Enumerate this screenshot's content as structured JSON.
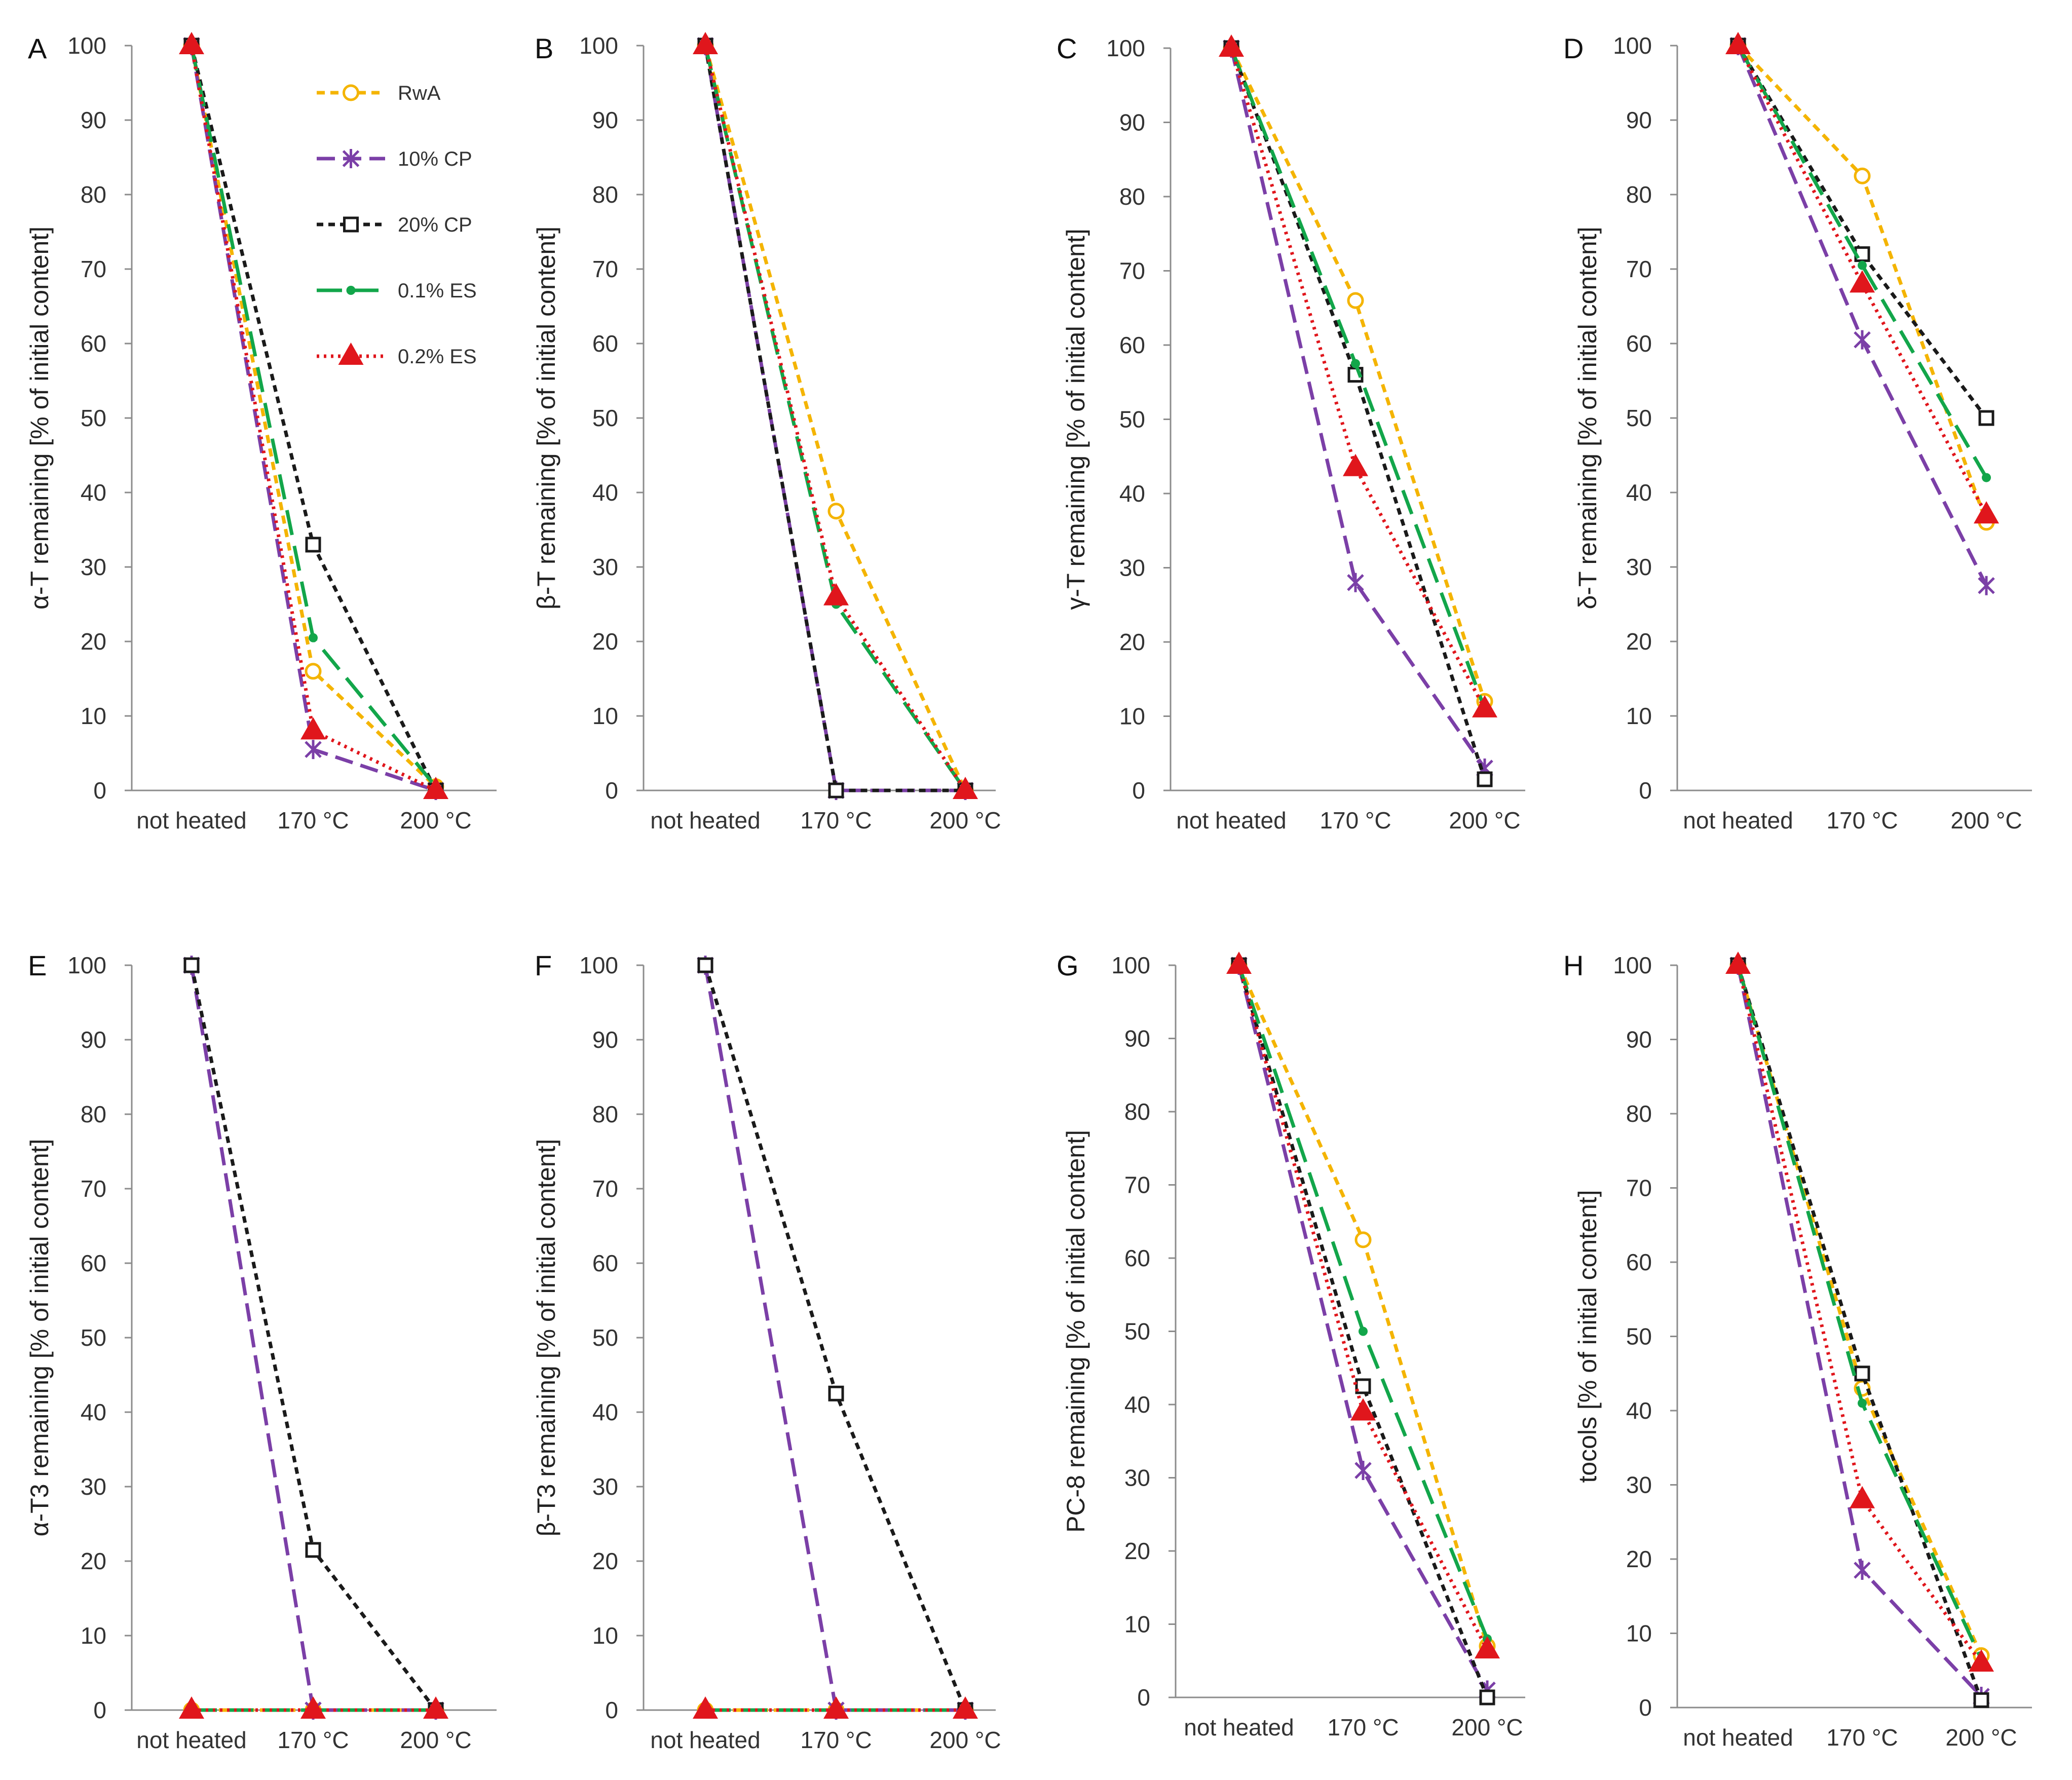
{
  "figure": {
    "categories": [
      "not heated",
      "170 °C",
      "200 °C"
    ],
    "yticks": [
      0,
      10,
      20,
      30,
      40,
      50,
      60,
      70,
      80,
      90,
      100
    ]
  },
  "series_styles": {
    "RwA": {
      "color": "#f4b400",
      "dash": "16,11",
      "marker": "circle-open"
    },
    "10% CP": {
      "color": "#7b3fa7",
      "dash": "36,16",
      "marker": "asterisk"
    },
    "20% CP": {
      "color": "#1a1a1a",
      "dash": "13,10",
      "marker": "square-open"
    },
    "0.1% ES": {
      "color": "#12a64a",
      "dash": "50,22",
      "marker": "dot"
    },
    "0.2% ES": {
      "color": "#e0161c",
      "dash": "5,9",
      "marker": "triangle-filled"
    }
  },
  "legend": {
    "items": [
      "RwA",
      "10% CP",
      "20% CP",
      "0.1% ES",
      "0.2% ES"
    ]
  },
  "chart_data": [
    {
      "panel": "A",
      "type": "line",
      "ylabel": "α-T remaining [% of initial content]",
      "ylim": [
        0,
        100
      ],
      "categories": [
        "not heated",
        "170 °C",
        "200 °C"
      ],
      "series": [
        {
          "name": "RwA",
          "values": [
            100,
            16,
            0.5
          ]
        },
        {
          "name": "10% CP",
          "values": [
            100,
            5.5,
            0
          ]
        },
        {
          "name": "20% CP",
          "values": [
            100,
            33,
            0
          ]
        },
        {
          "name": "0.1% ES",
          "values": [
            100,
            20.5,
            0.5
          ]
        },
        {
          "name": "0.2% ES",
          "values": [
            100,
            8,
            0
          ]
        }
      ]
    },
    {
      "panel": "B",
      "type": "line",
      "ylabel": "β-T remaining [% of initial content]",
      "ylim": [
        0,
        100
      ],
      "categories": [
        "not heated",
        "170 °C",
        "200 °C"
      ],
      "series": [
        {
          "name": "RwA",
          "values": [
            100,
            37.5,
            0
          ]
        },
        {
          "name": "10% CP",
          "values": [
            100,
            0,
            0
          ]
        },
        {
          "name": "20% CP",
          "values": [
            100,
            0,
            0
          ]
        },
        {
          "name": "0.1% ES",
          "values": [
            100,
            25,
            0
          ]
        },
        {
          "name": "0.2% ES",
          "values": [
            100,
            26,
            0
          ]
        }
      ]
    },
    {
      "panel": "C",
      "type": "line",
      "ylabel": "γ-T remaining [% of initial content]",
      "ylim": [
        0,
        100
      ],
      "categories": [
        "not heated",
        "170 °C",
        "200 °C"
      ],
      "series": [
        {
          "name": "RwA",
          "values": [
            100,
            66,
            12
          ]
        },
        {
          "name": "10% CP",
          "values": [
            100,
            28,
            3
          ]
        },
        {
          "name": "20% CP",
          "values": [
            100,
            56,
            1.5
          ]
        },
        {
          "name": "0.1% ES",
          "values": [
            100,
            57.5,
            11
          ]
        },
        {
          "name": "0.2% ES",
          "values": [
            100,
            43.5,
            11
          ]
        }
      ]
    },
    {
      "panel": "D",
      "type": "line",
      "ylabel": "δ-T remaining [% of initial content]",
      "ylim": [
        0,
        100
      ],
      "categories": [
        "not heated",
        "170 °C",
        "200 °C"
      ],
      "series": [
        {
          "name": "RwA",
          "values": [
            100,
            82.5,
            36
          ]
        },
        {
          "name": "10% CP",
          "values": [
            100,
            60.5,
            27.5
          ]
        },
        {
          "name": "20% CP",
          "values": [
            100,
            72,
            50
          ]
        },
        {
          "name": "0.1% ES",
          "values": [
            100,
            70.5,
            42
          ]
        },
        {
          "name": "0.2% ES",
          "values": [
            100,
            68,
            37
          ]
        }
      ]
    },
    {
      "panel": "E",
      "type": "line",
      "ylabel": "α-T3 remaining [% of initial content]",
      "ylim": [
        0,
        100
      ],
      "categories": [
        "not heated",
        "170 °C",
        "200 °C"
      ],
      "series": [
        {
          "name": "RwA",
          "values": [
            0,
            0,
            0
          ]
        },
        {
          "name": "10% CP",
          "values": [
            100,
            0,
            0
          ]
        },
        {
          "name": "20% CP",
          "values": [
            100,
            21.5,
            0
          ]
        },
        {
          "name": "0.1% ES",
          "values": [
            0,
            0,
            0
          ]
        },
        {
          "name": "0.2% ES",
          "values": [
            0,
            0,
            0
          ]
        }
      ]
    },
    {
      "panel": "F",
      "type": "line",
      "ylabel": "β-T3 remaining [% of initial content]",
      "ylim": [
        0,
        100
      ],
      "categories": [
        "not heated",
        "170 °C",
        "200 °C"
      ],
      "series": [
        {
          "name": "RwA",
          "values": [
            0,
            0,
            0
          ]
        },
        {
          "name": "10% CP",
          "values": [
            100,
            0,
            0
          ]
        },
        {
          "name": "20% CP",
          "values": [
            100,
            42.5,
            0
          ]
        },
        {
          "name": "0.1% ES",
          "values": [
            0,
            0,
            0
          ]
        },
        {
          "name": "0.2% ES",
          "values": [
            0,
            0,
            0
          ]
        }
      ]
    },
    {
      "panel": "G",
      "type": "line",
      "ylabel": "PC-8 remaining [% of initial content]",
      "ylim": [
        0,
        100
      ],
      "categories": [
        "not heated",
        "170 °C",
        "200 °C"
      ],
      "series": [
        {
          "name": "RwA",
          "values": [
            100,
            62.5,
            7
          ]
        },
        {
          "name": "10% CP",
          "values": [
            100,
            31,
            1
          ]
        },
        {
          "name": "20% CP",
          "values": [
            100,
            42.5,
            0
          ]
        },
        {
          "name": "0.1% ES",
          "values": [
            100,
            50,
            8
          ]
        },
        {
          "name": "0.2% ES",
          "values": [
            100,
            39,
            6.5
          ]
        }
      ]
    },
    {
      "panel": "H",
      "type": "line",
      "ylabel": "tocols [% of initial content]",
      "ylim": [
        0,
        100
      ],
      "categories": [
        "not heated",
        "170 °C",
        "200 °C"
      ],
      "series": [
        {
          "name": "RwA",
          "values": [
            100,
            43,
            7
          ]
        },
        {
          "name": "10% CP",
          "values": [
            100,
            18.5,
            1.5
          ]
        },
        {
          "name": "20% CP",
          "values": [
            100,
            45,
            1
          ]
        },
        {
          "name": "0.1% ES",
          "values": [
            100,
            41,
            6.5
          ]
        },
        {
          "name": "0.2% ES",
          "values": [
            100,
            28,
            6
          ]
        }
      ]
    }
  ]
}
